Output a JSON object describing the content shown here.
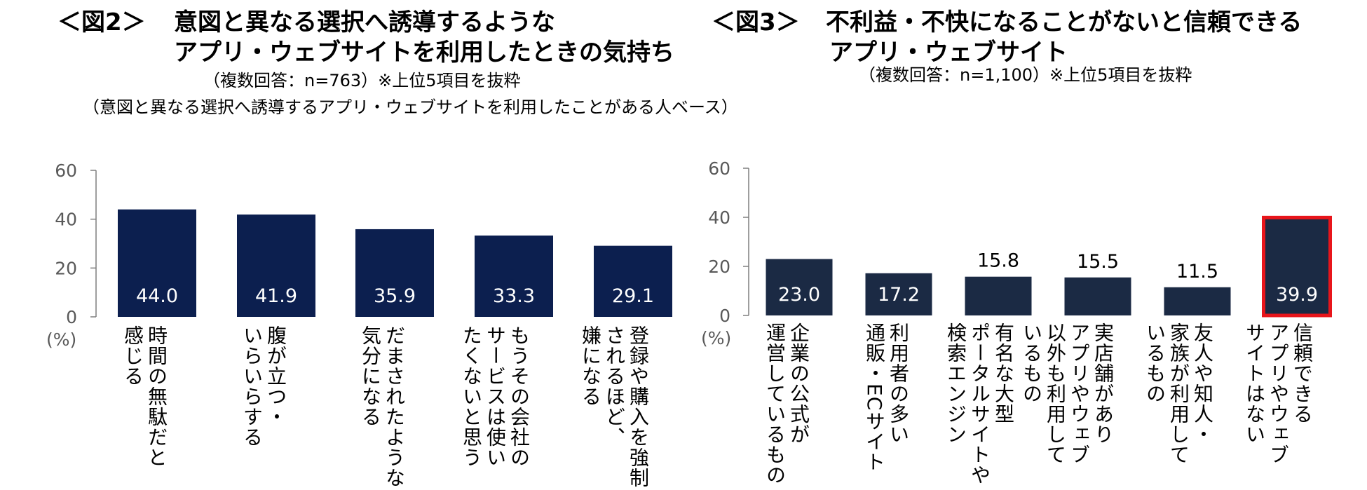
{
  "chart_data": [
    {
      "type": "bar",
      "figure_label": "＜図2＞",
      "title_line1": "意図と異なる選択へ誘導するような",
      "title_line2": "アプリ・ウェブサイトを利用したときの気持ち",
      "note": "（複数回答：n=763）※上位5項目を抜粋",
      "base": "（意図と異なる選択へ誘導するアプリ・ウェブサイトを利用したことがある人ベース）",
      "unit": "(%)",
      "ylim": [
        0,
        60
      ],
      "yticks": [
        "60",
        "40",
        "20",
        "0"
      ],
      "categories": [
        [
          "時間の無駄だと",
          "感じる"
        ],
        [
          "腹が立つ・",
          "いらいらする"
        ],
        [
          "だまされたような",
          "気分になる"
        ],
        [
          "もうその会社の",
          "サービスは使い",
          "たくないと思う"
        ],
        [
          "登録や購入を強制",
          "されるほど、",
          "嫌になる"
        ]
      ],
      "values": [
        44.0,
        41.9,
        35.9,
        33.3,
        29.1
      ],
      "value_labels": [
        "44.0",
        "41.9",
        "35.9",
        "33.3",
        "29.1"
      ],
      "bar_color": "#0c1f4f"
    },
    {
      "type": "bar",
      "figure_label": "＜図3＞",
      "title_line1": "不利益・不快になることがないと信頼できる",
      "title_line2": "アプリ・ウェブサイト",
      "note": "（複数回答：n=1,100）※上位5項目を抜粋",
      "unit": "(%)",
      "ylim": [
        0,
        60
      ],
      "yticks": [
        "60",
        "40",
        "20",
        "0"
      ],
      "categories": [
        [
          "企業の公式が",
          "運営しているもの"
        ],
        [
          "利用者の多い",
          "通販・ECサイト"
        ],
        [
          "有名な大型",
          "ポータルサイトや",
          "検索エンジン"
        ],
        [
          "実店舗があり",
          "アプリやウェブ",
          "以外も利用して",
          "いるもの"
        ],
        [
          "友人や知人・",
          "家族が利用して",
          "いるもの"
        ],
        [
          "信頼できる",
          "アプリやウェブ",
          "サイトはない"
        ]
      ],
      "values": [
        23.0,
        17.2,
        15.8,
        15.5,
        11.5,
        39.9
      ],
      "value_labels": [
        "23.0",
        "17.2",
        "15.8",
        "15.5",
        "11.5",
        "39.9"
      ],
      "bar_color": "#1b2a44",
      "highlight_color": "#e8151b"
    }
  ]
}
